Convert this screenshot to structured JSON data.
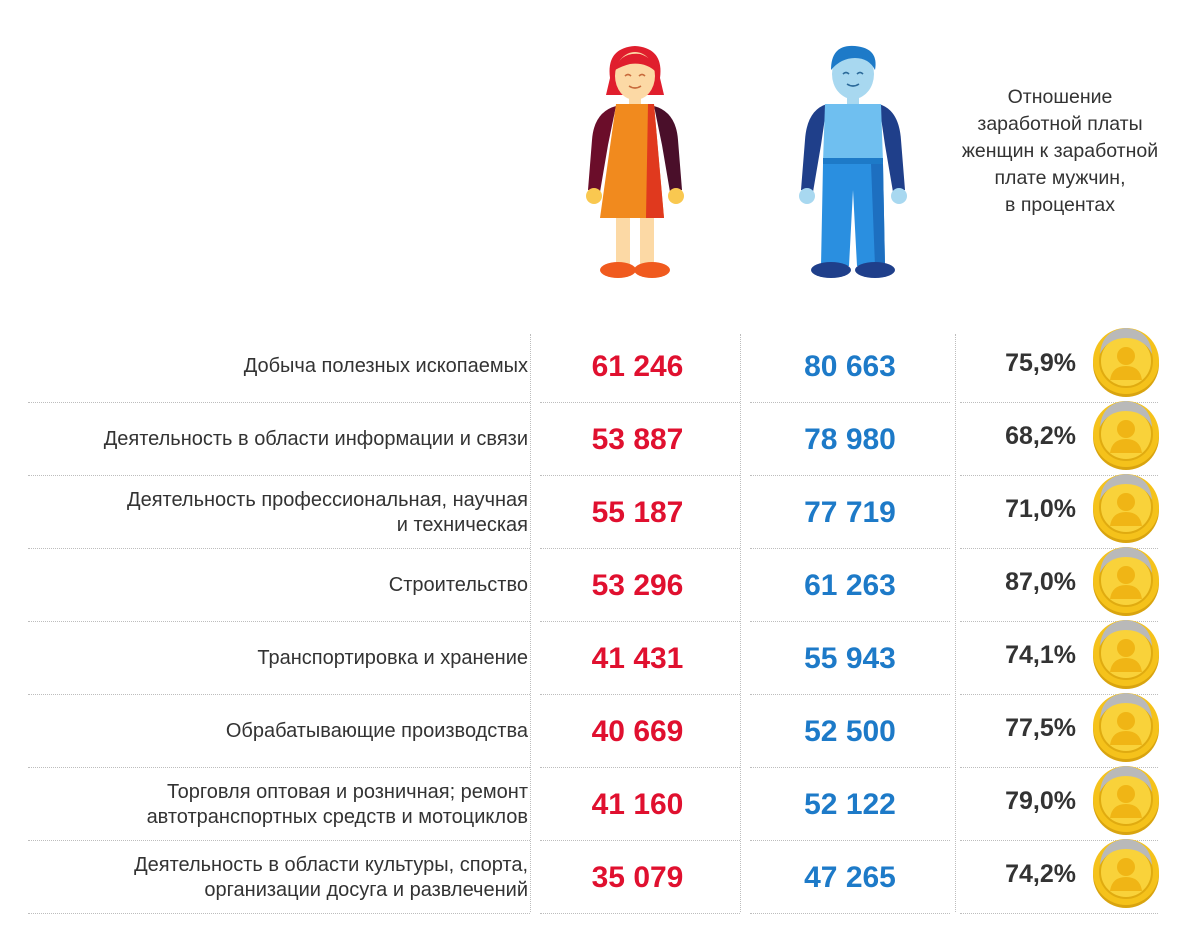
{
  "header": {
    "ratio_title": "Отношение\nзаработной платы\nженщин к заработной\nплате мужчин,\nв процентах"
  },
  "icons": {
    "woman": "woman-figure-icon",
    "man": "man-figure-icon",
    "coin": "gold-coin-icon"
  },
  "colors": {
    "women_value": "#e0102f",
    "men_value": "#1d7ac8",
    "coin_gold": "#f5c21b",
    "coin_silver": "#b9b9b9"
  },
  "rows": [
    {
      "label": "Добыча полезных ископаемых",
      "women": "61 246",
      "men": "80 663",
      "ratio": "75,9%"
    },
    {
      "label": "Деятельность в области информации и связи",
      "women": "53 887",
      "men": "78 980",
      "ratio": "68,2%"
    },
    {
      "label": "Деятельность профессиональная, научная\nи техническая",
      "women": "55 187",
      "men": "77 719",
      "ratio": "71,0%"
    },
    {
      "label": "Строительство",
      "women": "53 296",
      "men": "61 263",
      "ratio": "87,0%"
    },
    {
      "label": "Транспортировка и хранение",
      "women": "41 431",
      "men": "55 943",
      "ratio": "74,1%"
    },
    {
      "label": "Обрабатывающие производства",
      "women": "40 669",
      "men": "52 500",
      "ratio": "77,5%"
    },
    {
      "label": "Торговля оптовая и розничная; ремонт\nавтотранспортных средств и мотоциклов",
      "women": "41 160",
      "men": "52 122",
      "ratio": "79,0%"
    },
    {
      "label": "Деятельность в области культуры, спорта,\nорганизации досуга и развлечений",
      "women": "35 079",
      "men": "47 265",
      "ratio": "74,2%"
    }
  ]
}
